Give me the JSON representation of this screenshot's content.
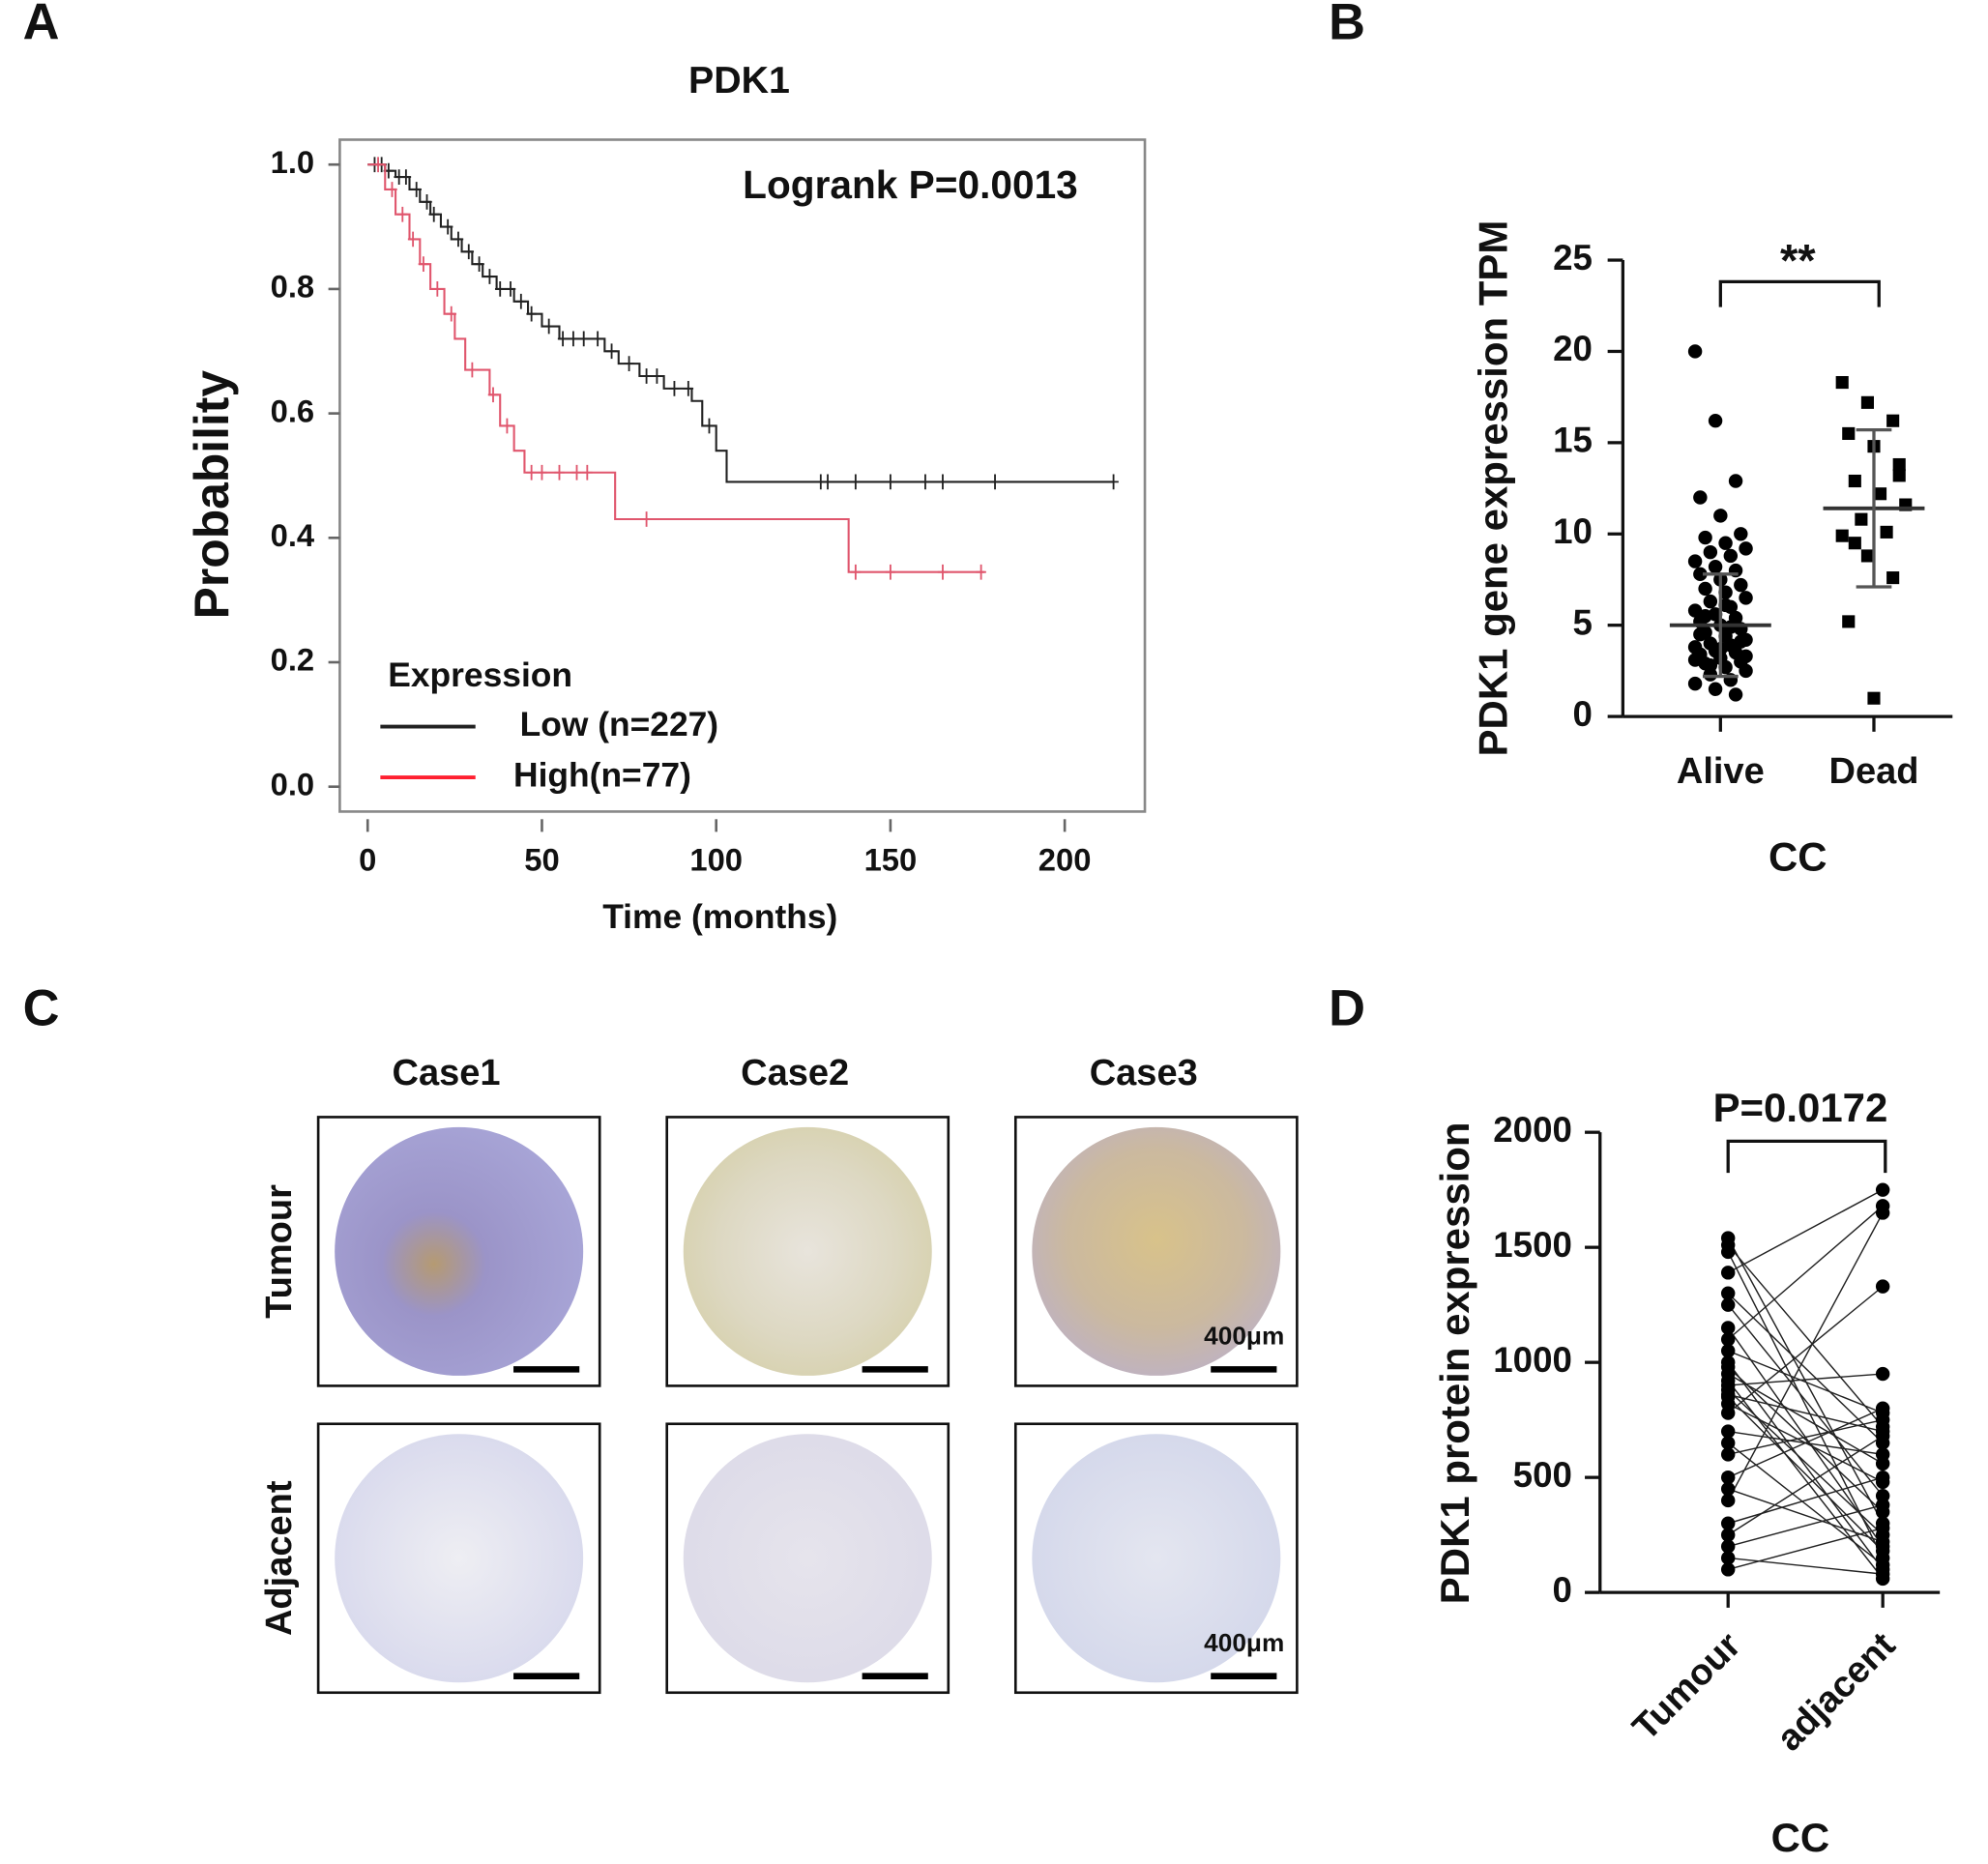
{
  "panel_labels": [
    "A",
    "B",
    "C",
    "D"
  ],
  "chart_data": [
    {
      "type": "survival",
      "title": "PDK1",
      "annotation": "Logrank P=0.0013",
      "x_label": "Time (months)",
      "y_label": "Probability",
      "legend_title": "Expression",
      "legend": "lower left",
      "step": "post",
      "xlim": [
        -8,
        223
      ],
      "ylim": [
        -0.04,
        1.04
      ],
      "xticks": [
        0,
        50,
        100,
        150,
        200
      ],
      "yticks": [
        {
          "value": 0,
          "label": "0.0"
        },
        0.2,
        0.4,
        0.6,
        0.8,
        {
          "value": 1,
          "label": "1.0"
        }
      ],
      "series": [
        {
          "name": "Low (n=227)",
          "color": "#222222",
          "x": [
            0,
            5,
            8,
            12,
            15,
            18,
            21,
            24,
            27,
            30,
            33,
            37,
            42,
            46,
            50,
            55,
            68,
            72,
            78,
            85,
            93,
            96,
            100,
            103,
            214
          ],
          "values": [
            1,
            0.99,
            0.98,
            0.96,
            0.94,
            0.92,
            0.9,
            0.88,
            0.86,
            0.84,
            0.82,
            0.8,
            0.78,
            0.76,
            0.74,
            0.72,
            0.7,
            0.68,
            0.66,
            0.64,
            0.62,
            0.58,
            0.54,
            0.49,
            0.49
          ],
          "censor_x": [
            2,
            4,
            6,
            9,
            11,
            14,
            17,
            19,
            23,
            26,
            29,
            32,
            35,
            38,
            41,
            44,
            47,
            52,
            56,
            59,
            62,
            66,
            70,
            75,
            80,
            83,
            88,
            92,
            98,
            130,
            132,
            140,
            150,
            160,
            165,
            180,
            214
          ]
        },
        {
          "name": "High(n=77)",
          "color": "#e0566d",
          "x": [
            0,
            5,
            8,
            12,
            15,
            18,
            22,
            25,
            28,
            35,
            38,
            42,
            45,
            71,
            138,
            177
          ],
          "values": [
            1,
            0.96,
            0.92,
            0.88,
            0.84,
            0.8,
            0.76,
            0.72,
            0.67,
            0.63,
            0.58,
            0.54,
            0.505,
            0.43,
            0.345,
            0.345
          ],
          "censor_x": [
            3,
            7,
            10,
            13,
            16,
            20,
            24,
            30,
            36,
            40,
            47,
            50,
            55,
            60,
            63,
            80,
            140,
            150,
            165,
            176
          ]
        }
      ]
    },
    {
      "type": "dot_plot",
      "y_label": "PDK1 gene expression TPM",
      "x_label": "CC",
      "significance": "**",
      "categories": [
        "Alive",
        "Dead"
      ],
      "ylim": [
        0,
        25
      ],
      "yticks": [
        0,
        5,
        10,
        15,
        20,
        25
      ],
      "groups": [
        {
          "marker": "circle",
          "color": "#000000",
          "mean": 5,
          "sd": 2.8,
          "values": [
            20,
            16.2,
            12.9,
            12,
            11,
            10,
            9.8,
            9.5,
            9.2,
            9,
            8.8,
            8.5,
            8.2,
            8,
            7.8,
            7.5,
            7.2,
            7,
            6.8,
            6.5,
            6.3,
            6,
            5.8,
            5.6,
            5.4,
            5.2,
            5,
            4.8,
            4.6,
            4.4,
            4.2,
            4,
            3.9,
            3.8,
            3.6,
            3.5,
            3.4,
            3.2,
            3,
            2.9,
            2.7,
            2.5,
            2.3,
            2,
            1.8,
            1.5,
            1.2,
            4.5,
            3.7,
            4.1,
            5.5,
            6.1,
            3.3,
            2.8,
            4.9,
            3.1
          ]
        },
        {
          "marker": "square",
          "color": "#000000",
          "mean": 11.4,
          "sd": 4.3,
          "values": [
            18.3,
            17.2,
            16.2,
            15.5,
            14.8,
            13.8,
            12.9,
            12.2,
            11.6,
            10.8,
            10.1,
            9.9,
            8.8,
            7.6,
            5.2,
            1,
            13.2,
            9.5
          ]
        }
      ]
    },
    {
      "type": "paired",
      "y_label": "PDK1 protein expression",
      "x_label": "CC",
      "annotation": "P=0.0172",
      "categories": [
        "Tumour",
        "adjacent"
      ],
      "ylim": [
        0,
        2000
      ],
      "yticks": [
        0,
        500,
        1000,
        1500,
        2000
      ],
      "groups": [
        {
          "color": "#000000",
          "values": [
            1540,
            1510,
            1480,
            1390,
            1300,
            1250,
            1150,
            1100,
            1050,
            1000,
            980,
            950,
            920,
            900,
            880,
            860,
            850,
            820,
            780,
            700,
            650,
            600,
            500,
            450,
            400,
            300,
            250,
            200,
            150,
            100
          ]
        },
        {
          "color": "#000000",
          "values": [
            300,
            720,
            150,
            1750,
            650,
            420,
            200,
            1680,
            780,
            100,
            350,
            560,
            60,
            950,
            250,
            700,
            180,
            480,
            1330,
            600,
            120,
            750,
            800,
            220,
            1650,
            500,
            680,
            380,
            80,
            280
          ]
        }
      ]
    }
  ],
  "image_grid": {
    "columns": [
      "Case1",
      "Case2",
      "Case3"
    ],
    "rows": [
      "Tumour",
      "Adjacent"
    ],
    "scale_labels": [
      "400μm",
      "400μm"
    ]
  }
}
